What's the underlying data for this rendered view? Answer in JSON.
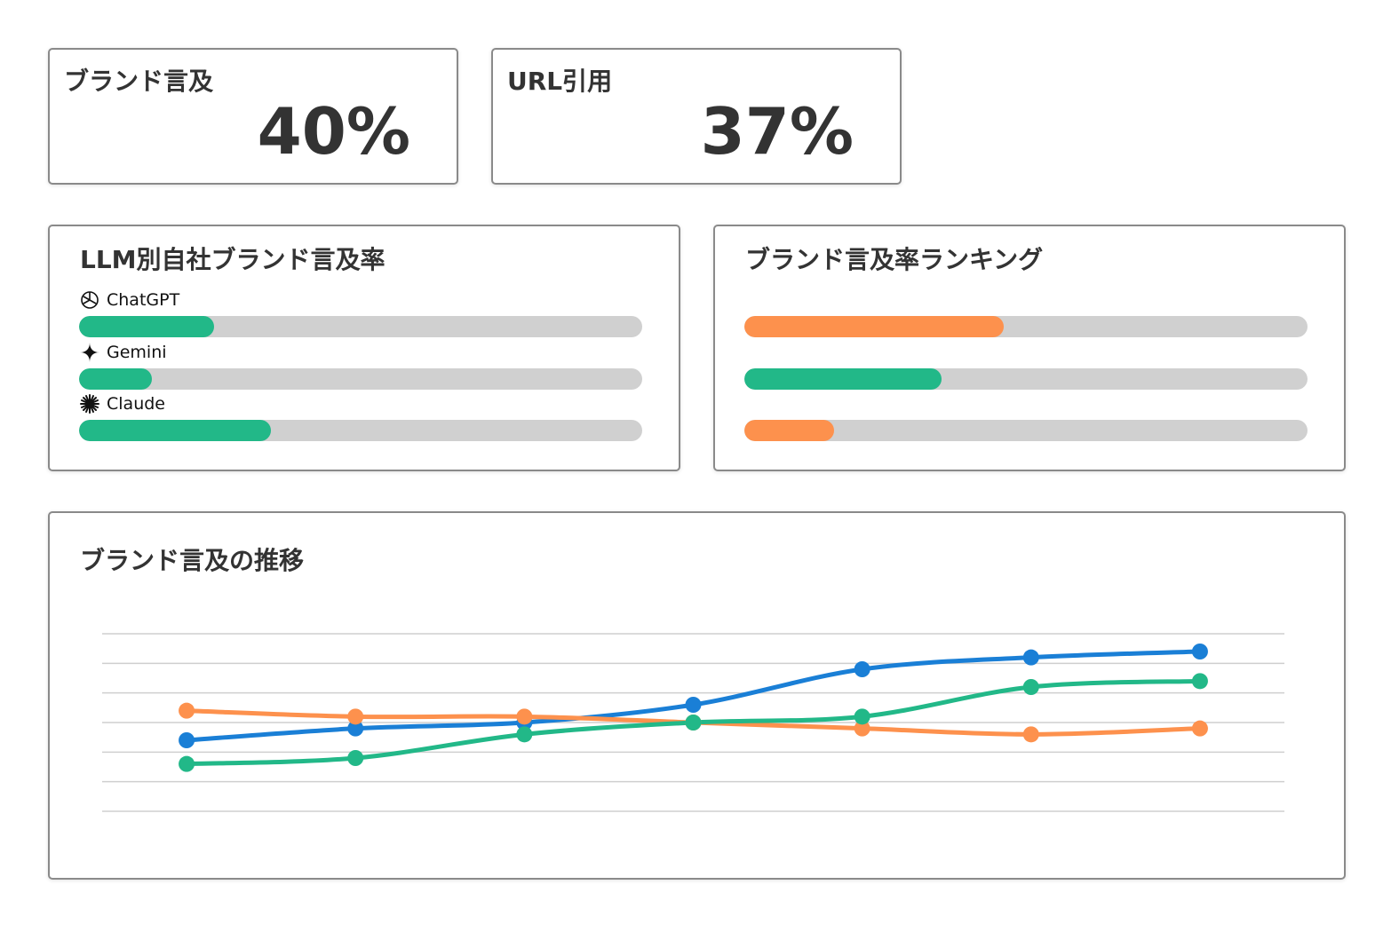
{
  "kpis": [
    {
      "label": "ブランド言及",
      "value": "40%"
    },
    {
      "label": "URL引用",
      "value": "37%"
    }
  ],
  "llm_chart": {
    "type": "bar",
    "title": "LLM別自社ブランド言及率",
    "categories": [
      "ChatGPT",
      "Gemini",
      "Claude"
    ],
    "values": [
      24,
      13,
      34
    ],
    "color": "#22b888",
    "xlim": [
      0,
      100
    ]
  },
  "ranking_chart": {
    "type": "bar",
    "title": "ブランド言及率ランキング",
    "categories": [
      null,
      null,
      null
    ],
    "values": [
      46,
      35,
      16
    ],
    "colors": [
      "#fd914d",
      "#22b888",
      "#fd914d"
    ],
    "xlim": [
      0,
      100
    ]
  },
  "trend_chart": {
    "type": "line",
    "title": "ブランド言及の推移",
    "categories": [
      null,
      null,
      null,
      null,
      null,
      null,
      null
    ],
    "series": [
      {
        "color": "#1a7fd6",
        "values": [
          2.4,
          2.8,
          3.0,
          3.6,
          4.8,
          5.2,
          5.4
        ]
      },
      {
        "color": "#fd914d",
        "values": [
          3.4,
          3.2,
          3.2,
          3.0,
          2.8,
          2.6,
          2.8
        ]
      },
      {
        "color": "#22b888",
        "values": [
          1.6,
          1.8,
          2.6,
          3.0,
          3.2,
          4.2,
          4.4
        ]
      }
    ],
    "ylim": [
      0,
      6
    ],
    "yticks": [
      0,
      1,
      2,
      3,
      4,
      5,
      6
    ],
    "grid": true
  }
}
